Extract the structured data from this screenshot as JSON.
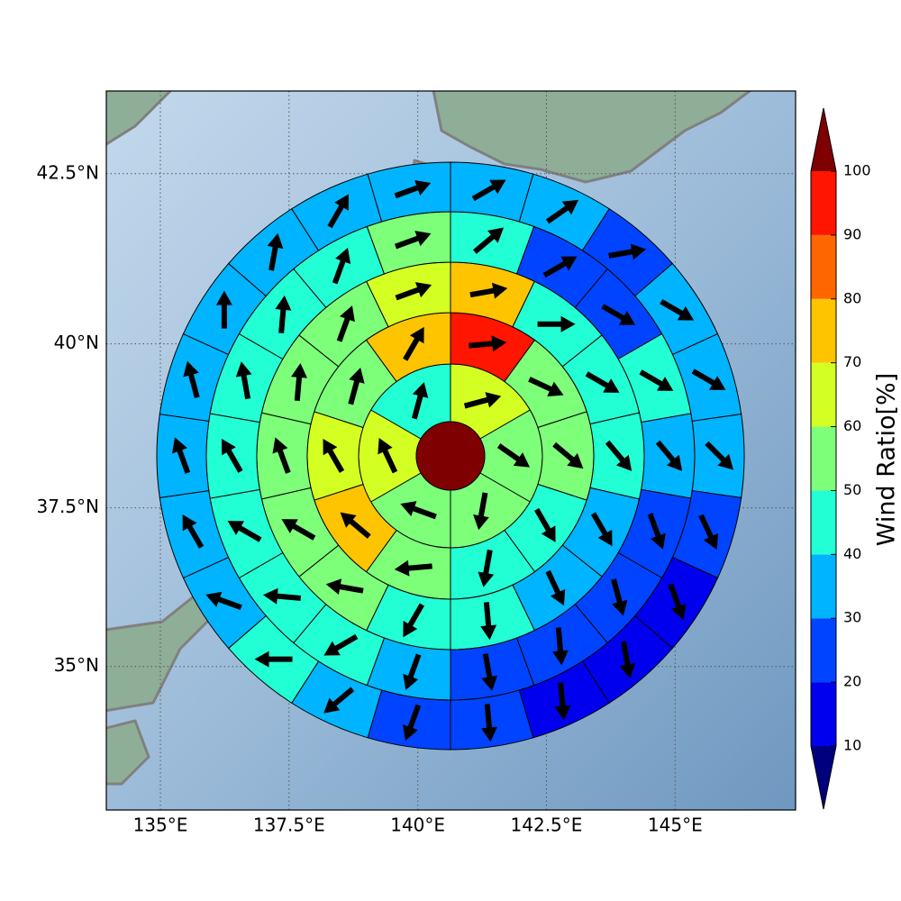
{
  "chart_data": {
    "type": "polar_sectors",
    "projection": "mercator",
    "xlim": [
      133.95,
      147.34
    ],
    "ylim": [
      32.67,
      43.68
    ],
    "xticks": [
      {
        "value": 135,
        "label": "135°E"
      },
      {
        "value": 137.5,
        "label": "137.5°E"
      },
      {
        "value": 140,
        "label": "140°E"
      },
      {
        "value": 142.5,
        "label": "142.5°E"
      },
      {
        "value": 145,
        "label": "145°E"
      }
    ],
    "yticks": [
      {
        "value": 35,
        "label": "35°N"
      },
      {
        "value": 37.5,
        "label": "37.5°N"
      },
      {
        "value": 40,
        "label": "40°N"
      },
      {
        "value": 42.5,
        "label": "42.5°N"
      }
    ],
    "grid": true,
    "center": {
      "value": 105
    },
    "rings": [
      {
        "values": [
          65,
          55,
          55,
          55,
          65,
          45
        ],
        "directions": [
          75,
          125,
          190,
          290,
          335,
          15
        ]
      },
      {
        "values": [
          95,
          55,
          55,
          45,
          45,
          55,
          75,
          65,
          55,
          75
        ],
        "directions": [
          85,
          115,
          130,
          150,
          190,
          265,
          310,
          330,
          15,
          30
        ]
      },
      {
        "values": [
          75,
          45,
          45,
          45,
          35,
          35,
          45,
          45,
          55,
          55,
          55,
          55,
          55,
          65
        ],
        "directions": [
          80,
          90,
          120,
          140,
          150,
          155,
          175,
          210,
          280,
          300,
          340,
          5,
          20,
          70
        ]
      },
      {
        "values": [
          45,
          25,
          25,
          45,
          35,
          25,
          25,
          25,
          25,
          35,
          45,
          45,
          45,
          45,
          45,
          45,
          45,
          55
        ],
        "directions": [
          50,
          60,
          120,
          120,
          140,
          160,
          165,
          175,
          170,
          200,
          240,
          275,
          300,
          330,
          350,
          5,
          20,
          70
        ]
      },
      {
        "values": [
          35,
          35,
          25,
          35,
          35,
          35,
          25,
          15,
          15,
          15,
          25,
          25,
          35,
          45,
          35,
          35,
          35,
          35,
          35,
          35,
          35,
          35
        ],
        "directions": [
          60,
          55,
          80,
          120,
          120,
          135,
          155,
          160,
          170,
          175,
          175,
          200,
          230,
          270,
          290,
          330,
          340,
          345,
          0,
          10,
          30,
          70
        ]
      }
    ],
    "colorbar": {
      "label": "Wind Ratio[%]",
      "ticks": [
        10,
        20,
        30,
        40,
        50,
        60,
        70,
        80,
        90,
        100
      ],
      "colors": [
        "#0000ee",
        "#0044ff",
        "#00b4ff",
        "#22ffd4",
        "#7dff7a",
        "#d4ff22",
        "#ffc400",
        "#ff6600",
        "#ff1500"
      ],
      "under_color": "#00007f",
      "over_color": "#7f0000",
      "extend": "both"
    },
    "arrow_color": "#000000"
  }
}
